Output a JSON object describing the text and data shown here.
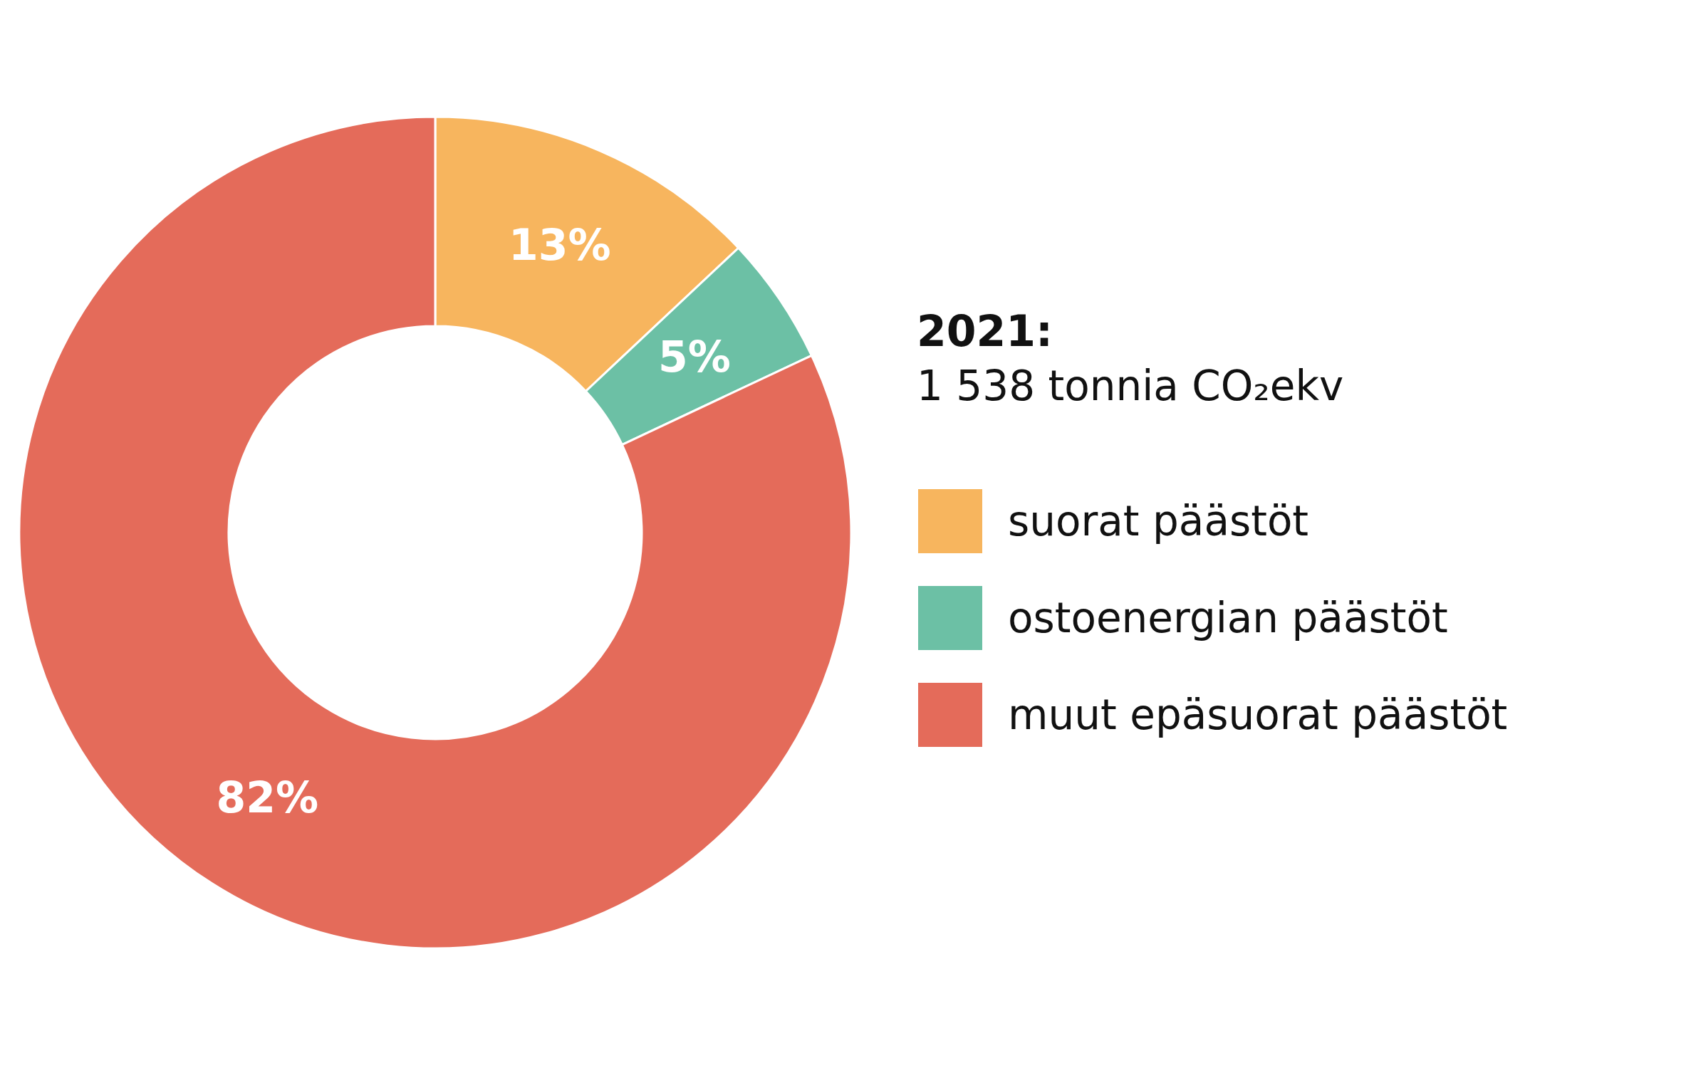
{
  "chart_data": {
    "type": "donut",
    "title": "2021:",
    "subtitle": "1 538 tonnia CO₂ekv",
    "categories": [
      "suorat päästöt",
      "ostoenergian päästöt",
      "muut epäsuorat päästöt"
    ],
    "values": [
      13,
      5,
      82
    ],
    "colors": [
      "#f7b55e",
      "#6cc0a5",
      "#e46b5a"
    ],
    "value_labels": [
      "13%",
      "5%",
      "82%"
    ],
    "legend": "right"
  }
}
